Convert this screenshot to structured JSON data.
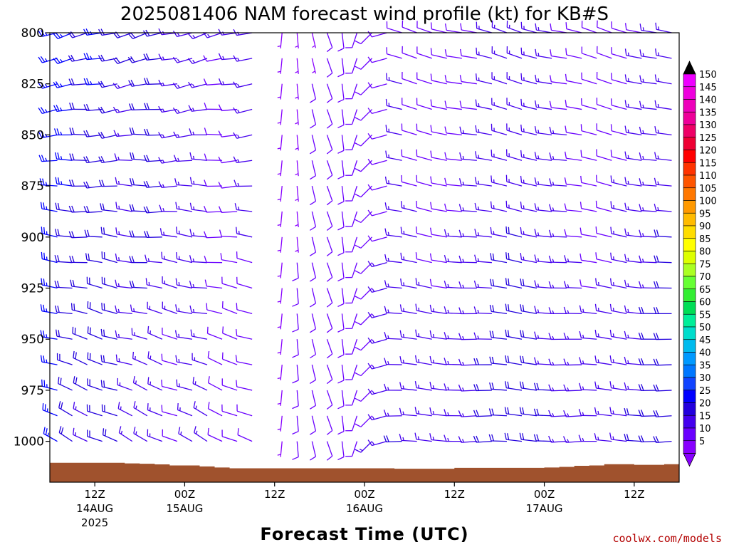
{
  "chart_data": {
    "type": "wind_barb_profile",
    "title": "2025081406 NAM forecast wind profile (kt) for KB#S",
    "xlabel": "Forecast Time (UTC)",
    "ylabel": "",
    "y_axis": {
      "quantity": "pressure (hPa)",
      "range": [
        800,
        1020
      ],
      "inverted": true,
      "ticks": [
        800,
        825,
        850,
        875,
        900,
        925,
        950,
        975,
        1000
      ]
    },
    "x_axis": {
      "range_hours": [
        0,
        84
      ],
      "ticks": [
        {
          "hour": 6,
          "top": "12Z",
          "mid": "14AUG",
          "bot": "2025"
        },
        {
          "hour": 18,
          "top": "00Z",
          "mid": "15AUG",
          "bot": ""
        },
        {
          "hour": 30,
          "top": "12Z",
          "mid": "",
          "bot": ""
        },
        {
          "hour": 42,
          "top": "00Z",
          "mid": "16AUG",
          "bot": ""
        },
        {
          "hour": 54,
          "top": "12Z",
          "mid": "",
          "bot": ""
        },
        {
          "hour": 66,
          "top": "00Z",
          "mid": "17AUG",
          "bot": ""
        },
        {
          "hour": 78,
          "top": "12Z",
          "mid": "",
          "bot": ""
        }
      ]
    },
    "levels_hpa": [
      800,
      812.5,
      825,
      837.5,
      850,
      862.5,
      875,
      887.5,
      900,
      912.5,
      925,
      937.5,
      950,
      962.5,
      975,
      987.5,
      1000,
      1012.5
    ],
    "times_hour": [
      1,
      3,
      5,
      7,
      9,
      11,
      13,
      15,
      17,
      19,
      21,
      23,
      25,
      27,
      29,
      31,
      33,
      35,
      37,
      39,
      41,
      43,
      45,
      47,
      49,
      51,
      53,
      55,
      57,
      59,
      61,
      63,
      65,
      67,
      69,
      71,
      73,
      75,
      77,
      79,
      81,
      83
    ],
    "surface_pressure_hpa": [
      1010.5,
      1010.5,
      1010.5,
      1010.5,
      1010.5,
      1010.8,
      1011,
      1011.3,
      1011.8,
      1011.8,
      1012.3,
      1012.8,
      1013.2,
      1013.2,
      1013.2,
      1013.2,
      1013.2,
      1013.2,
      1013.2,
      1013.2,
      1013.2,
      1013.2,
      1013.2,
      1013.4,
      1013.4,
      1013.4,
      1013.4,
      1013,
      1013,
      1013,
      1013,
      1013,
      1013,
      1012.8,
      1012.5,
      1012,
      1011.8,
      1011.2,
      1011.2,
      1011.5,
      1011.5,
      1011.2
    ],
    "surface_color": "#a0522d",
    "wind_model": {
      "direction_from_deg": {
        "early": [
          255,
          300
        ],
        "calm_gap_hours": [
          27.5,
          29.5
        ],
        "transition": [
          195,
          140
        ],
        "late": [
          270,
          285
        ]
      },
      "speed_kt": {
        "early": [
          25,
          12
        ],
        "transition": [
          5,
          12
        ],
        "late": [
          18,
          12
        ]
      }
    },
    "colorbar": {
      "labels": [
        5,
        10,
        15,
        20,
        25,
        30,
        35,
        40,
        45,
        50,
        55,
        60,
        65,
        70,
        75,
        80,
        85,
        90,
        95,
        100,
        105,
        110,
        115,
        120,
        125,
        130,
        135,
        140,
        145,
        150
      ],
      "colors": [
        "#8800ff",
        "#6a00ff",
        "#4400ee",
        "#2200dd",
        "#0000ff",
        "#1144ff",
        "#0077ff",
        "#0099ff",
        "#00bbee",
        "#00ddcc",
        "#00ee99",
        "#00dd55",
        "#33ee33",
        "#66ff33",
        "#aaff22",
        "#ddff00",
        "#ffff00",
        "#ffdd00",
        "#ffbb00",
        "#ff9900",
        "#ff7700",
        "#ff5500",
        "#ff3300",
        "#ff0000",
        "#ee0033",
        "#ee0066",
        "#ee0099",
        "#ee00bb",
        "#ee00dd",
        "#ee00ff"
      ],
      "low_arrow": "#8800ff",
      "high_arrow": "#000000"
    }
  },
  "credit": "coolwx.com/models"
}
